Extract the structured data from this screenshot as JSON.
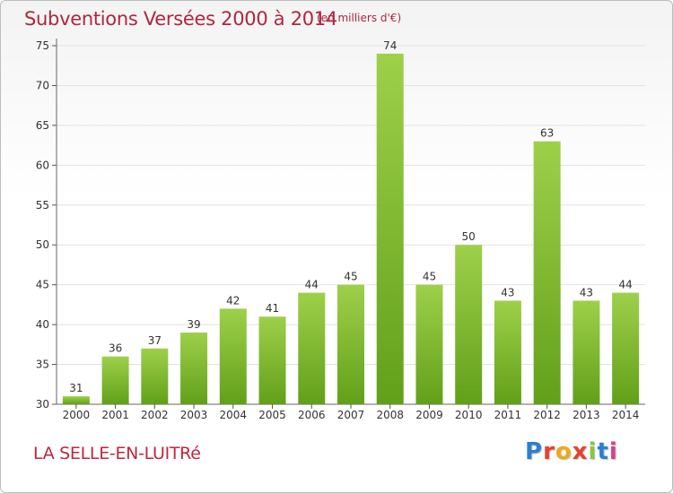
{
  "header": {
    "title": "Subventions Versées 2000 à 2014",
    "unit_note": "(en milliers d'€)"
  },
  "footer": {
    "commune": "LA SELLE-EN-LUITRé",
    "brand": "Proxiti",
    "brand_colors": [
      "#2a7fd4",
      "#e8412c",
      "#f0a81c",
      "#e8412c",
      "#8bc53f",
      "#2a7fd4",
      "#d93f8a"
    ]
  },
  "chart_data": {
    "type": "bar",
    "title": "Subventions Versées 2000 à 2014",
    "xlabel": "",
    "ylabel": "",
    "categories": [
      "2000",
      "2001",
      "2002",
      "2003",
      "2004",
      "2005",
      "2006",
      "2007",
      "2008",
      "2009",
      "2010",
      "2011",
      "2012",
      "2013",
      "2014"
    ],
    "values": [
      31,
      36,
      37,
      39,
      42,
      41,
      44,
      45,
      74,
      45,
      50,
      43,
      63,
      43,
      44
    ],
    "ylim": [
      30,
      75
    ],
    "yticks": [
      30,
      35,
      40,
      45,
      50,
      55,
      60,
      65,
      70,
      75
    ],
    "grid": true,
    "bar_color_top": "#9ed04a",
    "bar_color_bottom": "#62a01a",
    "grid_color": "#e2e2e2"
  }
}
